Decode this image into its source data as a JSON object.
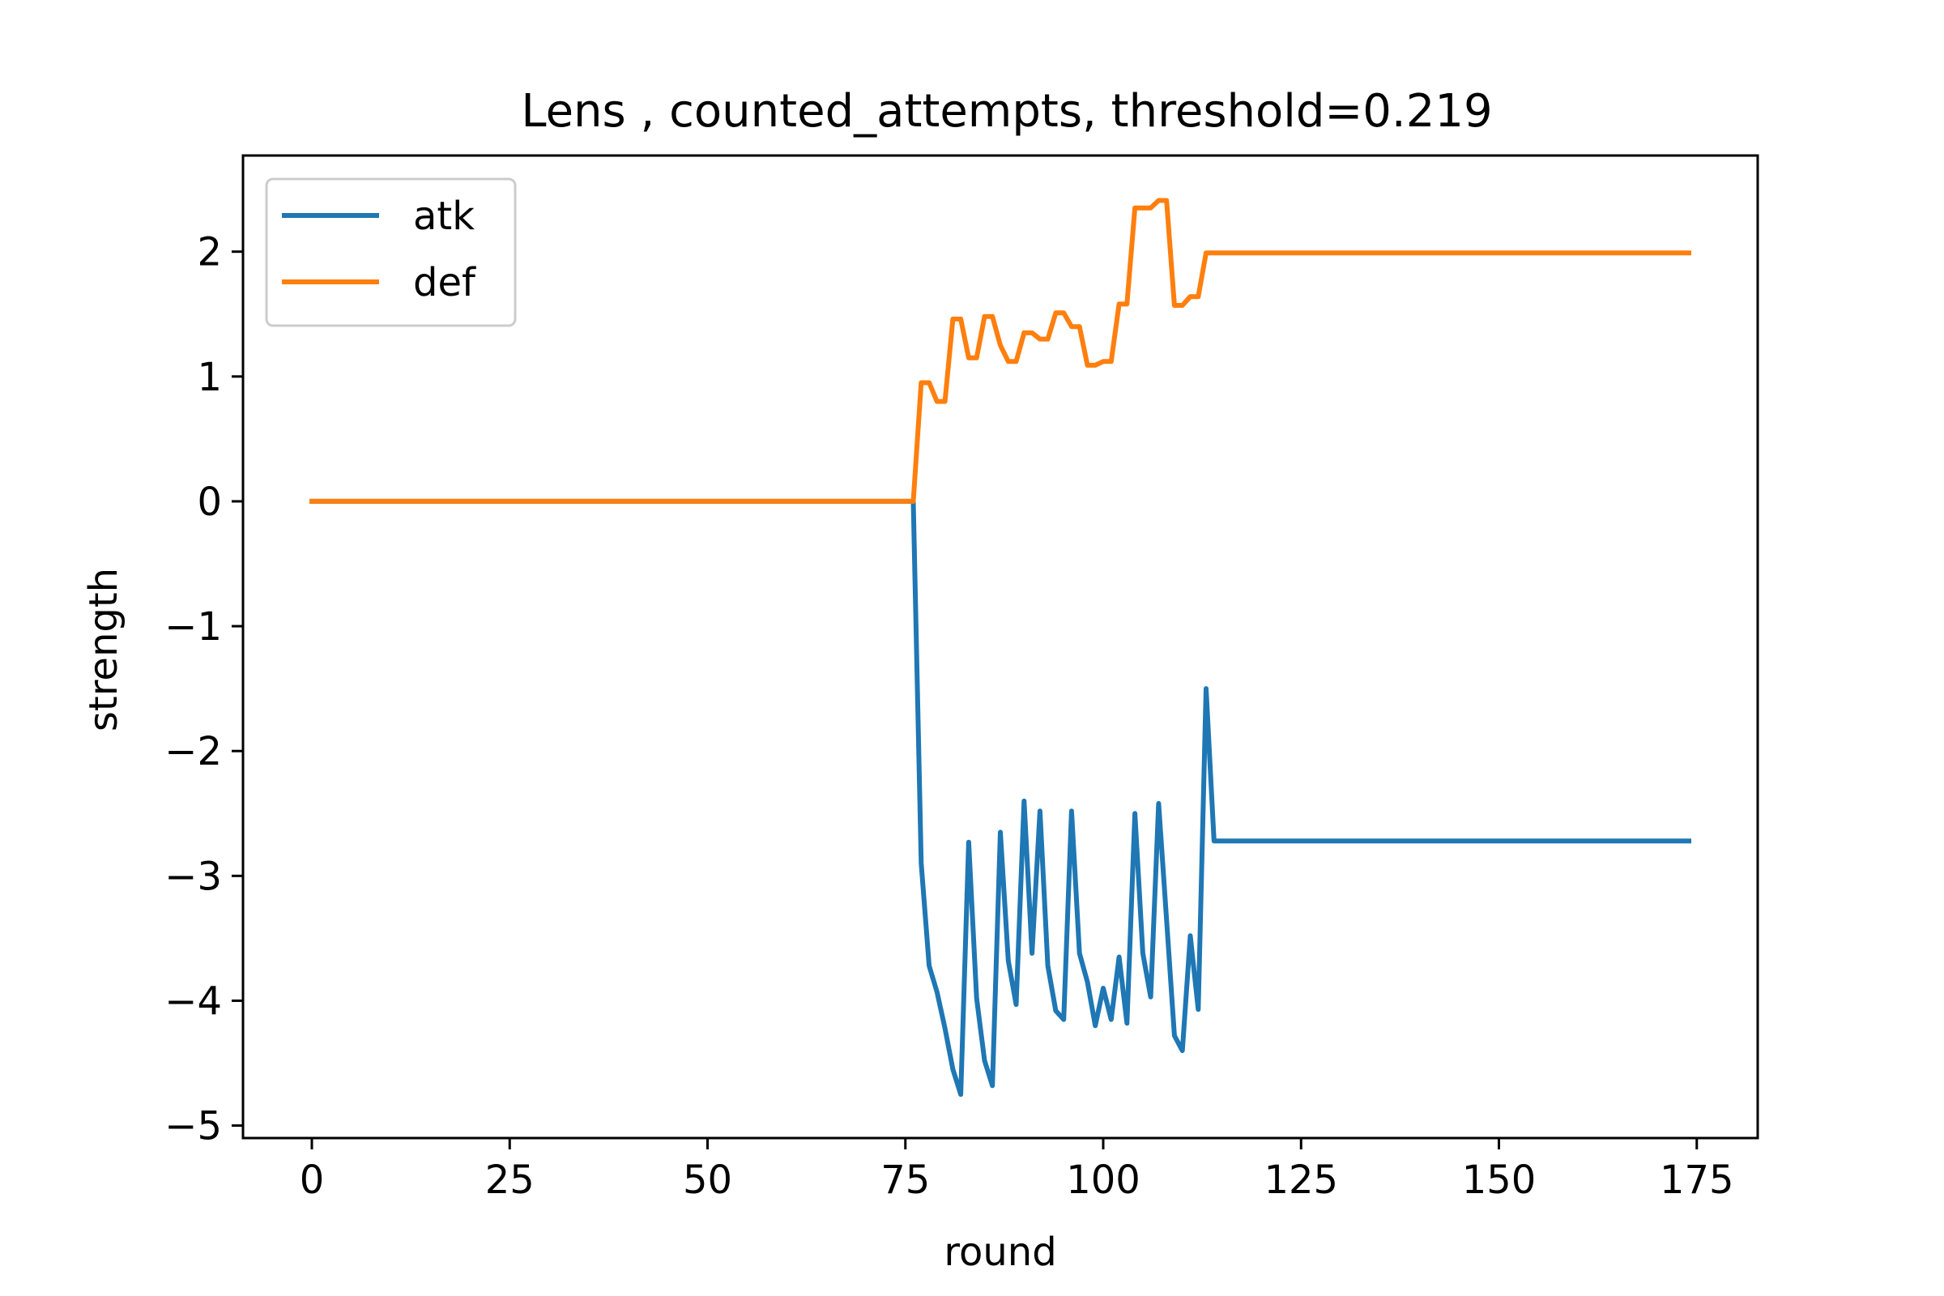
{
  "chart_data": {
    "type": "line",
    "title": "Lens , counted_attempts, threshold=0.219",
    "xlabel": "round",
    "ylabel": "strength",
    "xlim": [
      -8.7,
      182.7
    ],
    "ylim": [
      -5.1,
      2.77
    ],
    "xticks": [
      0,
      25,
      50,
      75,
      100,
      125,
      150,
      175
    ],
    "yticks": [
      2,
      1,
      0,
      -1,
      -2,
      -3,
      -4,
      -5
    ],
    "xtick_labels": [
      "0",
      "25",
      "50",
      "75",
      "100",
      "125",
      "150",
      "175"
    ],
    "ytick_labels": [
      "2",
      "1",
      "0",
      "−1",
      "−2",
      "−3",
      "−4",
      "−5"
    ],
    "grid": false,
    "legend_position": "upper-left",
    "series": [
      {
        "name": "atk",
        "color": "#1f77b4",
        "points": [
          [
            0,
            0
          ],
          [
            76,
            0
          ],
          [
            77,
            -2.9
          ],
          [
            78,
            -3.72
          ],
          [
            79,
            -3.93
          ],
          [
            80,
            -4.22
          ],
          [
            81,
            -4.55
          ],
          [
            82,
            -4.75
          ],
          [
            83,
            -2.73
          ],
          [
            84,
            -3.98
          ],
          [
            85,
            -4.48
          ],
          [
            86,
            -4.68
          ],
          [
            87,
            -2.65
          ],
          [
            88,
            -3.68
          ],
          [
            89,
            -4.03
          ],
          [
            90,
            -2.4
          ],
          [
            91,
            -3.62
          ],
          [
            92,
            -2.48
          ],
          [
            93,
            -3.72
          ],
          [
            94,
            -4.08
          ],
          [
            95,
            -4.15
          ],
          [
            96,
            -2.48
          ],
          [
            97,
            -3.62
          ],
          [
            98,
            -3.85
          ],
          [
            99,
            -4.2
          ],
          [
            100,
            -3.9
          ],
          [
            101,
            -4.15
          ],
          [
            102,
            -3.65
          ],
          [
            103,
            -4.18
          ],
          [
            104,
            -2.5
          ],
          [
            105,
            -3.62
          ],
          [
            106,
            -3.97
          ],
          [
            107,
            -2.42
          ],
          [
            108,
            -3.35
          ],
          [
            109,
            -4.28
          ],
          [
            110,
            -4.4
          ],
          [
            111,
            -3.48
          ],
          [
            112,
            -4.07
          ],
          [
            113,
            -1.5
          ],
          [
            114,
            -2.72
          ],
          [
            174,
            -2.72
          ]
        ]
      },
      {
        "name": "def",
        "color": "#ff7f0e",
        "points": [
          [
            0,
            0
          ],
          [
            76,
            0
          ],
          [
            77,
            0.95
          ],
          [
            78,
            0.95
          ],
          [
            79,
            0.8
          ],
          [
            80,
            0.8
          ],
          [
            81,
            1.46
          ],
          [
            82,
            1.46
          ],
          [
            83,
            1.15
          ],
          [
            84,
            1.15
          ],
          [
            85,
            1.48
          ],
          [
            86,
            1.48
          ],
          [
            87,
            1.25
          ],
          [
            88,
            1.12
          ],
          [
            89,
            1.12
          ],
          [
            90,
            1.35
          ],
          [
            91,
            1.35
          ],
          [
            92,
            1.3
          ],
          [
            93,
            1.3
          ],
          [
            94,
            1.51
          ],
          [
            95,
            1.51
          ],
          [
            96,
            1.4
          ],
          [
            97,
            1.4
          ],
          [
            98,
            1.09
          ],
          [
            99,
            1.09
          ],
          [
            100,
            1.12
          ],
          [
            101,
            1.12
          ],
          [
            102,
            1.58
          ],
          [
            103,
            1.58
          ],
          [
            104,
            2.35
          ],
          [
            105,
            2.35
          ],
          [
            106,
            2.35
          ],
          [
            107,
            2.41
          ],
          [
            108,
            2.41
          ],
          [
            109,
            1.57
          ],
          [
            110,
            1.57
          ],
          [
            111,
            1.64
          ],
          [
            112,
            1.64
          ],
          [
            113,
            1.99
          ],
          [
            114,
            1.99
          ],
          [
            174,
            1.99
          ]
        ]
      }
    ]
  }
}
